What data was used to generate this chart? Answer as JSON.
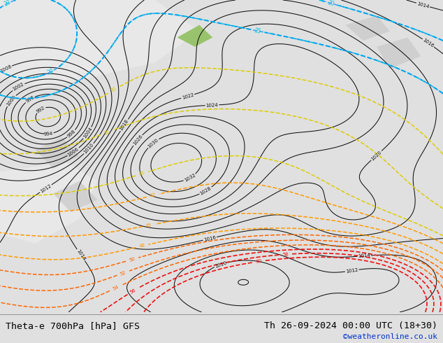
{
  "title_left": "Theta-e 700hPa [hPa] GFS",
  "title_right": "Th 26-09-2024 00:00 UTC (18+30)",
  "copyright": "©weatheronline.co.uk",
  "bg_color": "#e0e0e0",
  "map_bg": "#f0f0f0",
  "green_color": "#c8e896",
  "white_sea": "#e8e8e8",
  "gray_land": "#c0c0c0",
  "contour_color": "#111111",
  "cyan_color": "#00ccdd",
  "blue_color": "#0088ff",
  "yellow_color": "#ddcc00",
  "orange_color": "#ff9900",
  "dark_orange": "#ff6600",
  "red_color": "#ee1111",
  "dark_red": "#aa0000",
  "green_contour": "#00aa44",
  "teal_color": "#009988",
  "figsize": [
    6.34,
    4.9
  ],
  "dpi": 100
}
